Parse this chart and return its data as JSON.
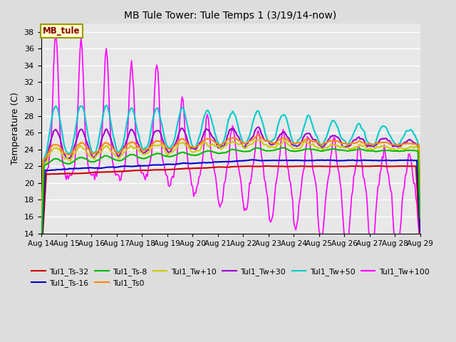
{
  "title": "MB Tule Tower: Tule Temps 1 (3/19/14-now)",
  "ylabel": "Temperature (C)",
  "ylim": [
    14,
    39
  ],
  "yticks": [
    14,
    16,
    18,
    20,
    22,
    24,
    26,
    28,
    30,
    32,
    34,
    36,
    38
  ],
  "xlim": [
    0,
    360
  ],
  "xtick_labels": [
    "Aug 14",
    "Aug 15",
    "Aug 16",
    "Aug 17",
    "Aug 18",
    "Aug 19",
    "Aug 20",
    "Aug 21",
    "Aug 22",
    "Aug 23",
    "Aug 24",
    "Aug 25",
    "Aug 26",
    "Aug 27",
    "Aug 28",
    "Aug 29"
  ],
  "xtick_positions": [
    0,
    24,
    48,
    72,
    96,
    120,
    144,
    168,
    192,
    216,
    240,
    264,
    288,
    312,
    336,
    360
  ],
  "bg_color": "#dddddd",
  "plot_bg_color": "#e8e8e8",
  "grid_color": "#ffffff",
  "series": {
    "Tul1_Ts-32": {
      "color": "#cc0000",
      "lw": 1.5,
      "zorder": 5
    },
    "Tul1_Ts-16": {
      "color": "#0000cc",
      "lw": 1.5,
      "zorder": 5
    },
    "Tul1_Ts-8": {
      "color": "#00bb00",
      "lw": 1.5,
      "zorder": 5
    },
    "Tul1_Ts0": {
      "color": "#ff8800",
      "lw": 1.5,
      "zorder": 4
    },
    "Tul1_Tw+10": {
      "color": "#cccc00",
      "lw": 1.5,
      "zorder": 4
    },
    "Tul1_Tw+30": {
      "color": "#9900cc",
      "lw": 1.5,
      "zorder": 3
    },
    "Tul1_Tw+50": {
      "color": "#00cccc",
      "lw": 1.5,
      "zorder": 3
    },
    "Tul1_Tw+100": {
      "color": "#ff00ff",
      "lw": 1.2,
      "zorder": 2
    }
  },
  "legend_box_facecolor": "#ffffcc",
  "legend_box_edgecolor": "#999900",
  "legend_text": "MB_tule",
  "legend_text_color": "#880000",
  "figsize": [
    6.4,
    4.8
  ],
  "dpi": 100
}
